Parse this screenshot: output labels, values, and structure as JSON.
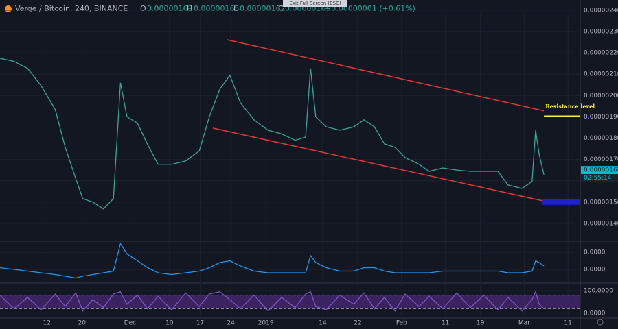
{
  "header": {
    "symbol": "Verge / Bitcoin, 240, BINANCE",
    "open_label": "O",
    "open": "0.00000163",
    "high_label": "H",
    "high": "0.00000165",
    "low_label": "L",
    "low": "0.00000162",
    "close_label": "C",
    "close": "0.00000165",
    "change": "+0.00000001 (+0.61%)"
  },
  "tooltip": "Exit Full Screen (ESC)",
  "chart_data": [
    {
      "type": "line",
      "x": [
        -10.7,
        -7.5,
        -4.4,
        -1.3,
        1.9,
        4.2,
        6.6,
        8.2,
        10.5,
        12.9,
        15.2,
        16.8,
        18.3,
        20.7,
        23,
        25.4,
        28.5,
        31.7,
        34.8,
        37.1,
        39.5,
        41.8,
        44.2,
        47.3,
        50.5,
        53.6,
        56.7,
        59.1,
        60.2,
        61.4,
        63.8,
        66.9,
        70.1,
        72.4,
        74.8,
        77.1,
        79.5,
        81.8,
        85,
        87.3,
        90.4,
        93.6,
        96.7,
        99.8,
        103,
        105.3,
        108.5,
        110.8,
        111.6,
        112.4,
        113.5
      ],
      "series": [
        {
          "color": "#3aa59a",
          "values": [
            2.175e-06,
            2.16e-06,
            2.127e-06,
            2.046e-06,
            1.934e-06,
            1.757e-06,
            1.61e-06,
            1.516e-06,
            1.5e-06,
            1.468e-06,
            1.516e-06,
            2.06e-06,
            1.9e-06,
            1.87e-06,
            1.77e-06,
            1.677e-06,
            1.677e-06,
            1.693e-06,
            1.74e-06,
            1.9e-06,
            2.03e-06,
            2.095e-06,
            1.966e-06,
            1.886e-06,
            1.837e-06,
            1.82e-06,
            1.79e-06,
            1.805e-06,
            2.127e-06,
            1.9e-06,
            1.853e-06,
            1.837e-06,
            1.853e-06,
            1.886e-06,
            1.853e-06,
            1.773e-06,
            1.757e-06,
            1.709e-06,
            1.677e-06,
            1.644e-06,
            1.66e-06,
            1.65e-06,
            1.644e-06,
            1.644e-06,
            1.644e-06,
            1.58e-06,
            1.564e-06,
            1.596e-06,
            1.837e-06,
            1.725e-06,
            1.628e-06
          ]
        }
      ],
      "xlim": [
        -10.7,
        121.8
      ],
      "xticks": [
        {
          "value": 0,
          "label": "12"
        },
        {
          "value": 8,
          "label": "20"
        },
        {
          "value": 19,
          "label": "Dec"
        },
        {
          "value": 28,
          "label": "10"
        },
        {
          "value": 35,
          "label": "17"
        },
        {
          "value": 42,
          "label": "24"
        },
        {
          "value": 50,
          "label": "2019"
        },
        {
          "value": 63,
          "label": "14"
        },
        {
          "value": 71,
          "label": "22"
        },
        {
          "value": 81,
          "label": "Feb"
        },
        {
          "value": 91,
          "label": "11"
        },
        {
          "value": 99,
          "label": "19"
        },
        {
          "value": 109,
          "label": "Mar"
        },
        {
          "value": 119,
          "label": "11"
        }
      ],
      "ylim": [
        1.316e-06,
        2.448e-06
      ],
      "yticks": [
        {
          "value": 1.4e-06,
          "label": "0.00000140"
        },
        {
          "value": 1.5e-06,
          "label": "0.00000150"
        },
        {
          "value": 1.6e-06,
          "label": "0.00000160"
        },
        {
          "value": 1.7e-06,
          "label": "0.00000170"
        },
        {
          "value": 1.8e-06,
          "label": "0.00000180"
        },
        {
          "value": 1.9e-06,
          "label": "0.00000190"
        },
        {
          "value": 2e-06,
          "label": "0.00000200"
        },
        {
          "value": 2.1e-06,
          "label": "0.00000210"
        },
        {
          "value": 2.2e-06,
          "label": "0.00000220"
        },
        {
          "value": 2.3e-06,
          "label": "0.00000230"
        },
        {
          "value": 2.4e-06,
          "label": "0.00000240"
        }
      ],
      "trendlines": [
        {
          "color": "#e53935",
          "x": [
            41.1,
            113.5
          ],
          "values": [
            2.262e-06,
            1.928e-06
          ]
        },
        {
          "color": "#e53935",
          "x": [
            37.9,
            113.2
          ],
          "values": [
            1.847e-06,
            1.506e-06
          ]
        }
      ],
      "resistance": {
        "label": "Resistance level",
        "value": 1.902e-06,
        "x": [
          113.5,
          121.8
        ],
        "color": "#ffeb3b"
      },
      "support": {
        "value": 1.5e-06,
        "x": [
          113.2,
          121.8
        ],
        "color": "#1e22c8"
      },
      "last_price": {
        "value": 1.65e-06,
        "label": "0.00000165",
        "countdown": "02:55:14",
        "color": "#00bcd4"
      }
    },
    {
      "type": "line",
      "series": [
        {
          "color": "#2196f3",
          "values": [
            1e-08,
            0,
            -1e-08,
            -2e-08,
            -3e-08,
            -4e-08,
            -5e-08,
            -4e-08,
            -3e-08,
            -2e-08,
            -1e-08,
            1.5e-07,
            9e-08,
            5e-08,
            1e-08,
            -2e-08,
            -3e-08,
            -2e-08,
            -1e-08,
            1e-08,
            4e-08,
            5e-08,
            2e-08,
            -1e-08,
            -2e-08,
            -2e-08,
            -2e-08,
            -2e-08,
            8e-08,
            4e-08,
            1e-08,
            -1e-08,
            -1e-08,
            1e-08,
            1e-08,
            -1e-08,
            -2e-08,
            -2e-08,
            -2e-08,
            -2e-08,
            -1e-08,
            -1e-08,
            -1e-08,
            -1e-08,
            -1e-08,
            -2e-08,
            -2e-08,
            -1e-08,
            5e-08,
            4e-08,
            2e-08
          ]
        }
      ],
      "ylim": [
        -6.8e-08,
        1.64e-07
      ],
      "yticks": [
        {
          "value": 1e-07,
          "label": "0.0000"
        },
        {
          "value": 0,
          "label": "0.0000"
        }
      ]
    },
    {
      "type": "line",
      "series": [
        {
          "color": "#7e57c2",
          "values": [
            80,
            20,
            70,
            15,
            85,
            30,
            90,
            10,
            60,
            25,
            85,
            95,
            40,
            80,
            20,
            75,
            15,
            90,
            30,
            85,
            95,
            60,
            20,
            80,
            10,
            70,
            25,
            85,
            95,
            30,
            15,
            80,
            40,
            90,
            20,
            70,
            10,
            85,
            30,
            75,
            20,
            90,
            25,
            80,
            15,
            70,
            10,
            60,
            95,
            40,
            20
          ]
        }
      ],
      "ylim": [
        -15.2,
        118.2
      ],
      "yticks": [
        {
          "value": 100,
          "label": "100.0000"
        },
        {
          "value": 0,
          "label": "0.0000"
        }
      ],
      "band": [
        20,
        80
      ],
      "band_color": "#4a2a7a"
    }
  ]
}
